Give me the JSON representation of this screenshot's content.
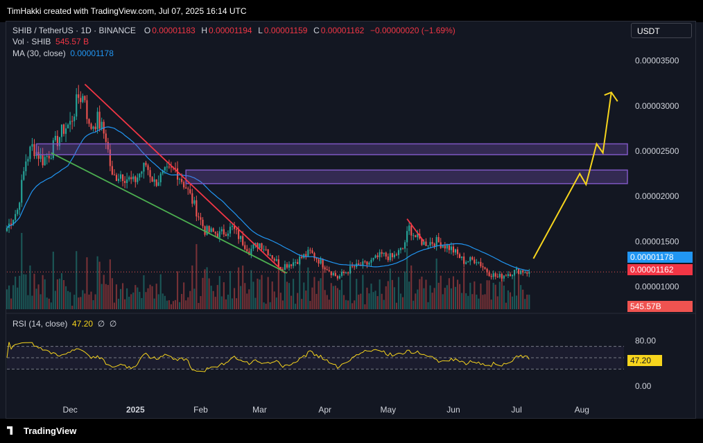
{
  "header": {
    "credit": "TimHakki created with TradingView.com, Jul 07, 2025 16:14 UTC"
  },
  "legend": {
    "symbol": "SHIB / TetherUS · 1D · BINANCE",
    "o_label": "O",
    "o": "0.00001183",
    "h_label": "H",
    "h": "0.00001194",
    "l_label": "L",
    "l": "0.00001159",
    "c_label": "C",
    "c": "0.00001162",
    "change": "−0.00000020 (−1.69%)",
    "vol_label": "Vol · SHIB",
    "vol": "545.57 B",
    "ma_label": "MA (30, close)",
    "ma": "0.00001178"
  },
  "currency_button": "USDT",
  "rsi_legend": {
    "label": "RSI (14, close)",
    "value": "47.20",
    "flag1": "∅",
    "flag2": "∅"
  },
  "price_tags": {
    "ma": "0.00001178",
    "close": "0.00001162",
    "volume": "545.57B",
    "rsi": "47.20"
  },
  "footer": {
    "brand": "TradingView"
  },
  "colors": {
    "up": "#26a69a",
    "down": "#ef5350",
    "ma": "#2196f3",
    "rsi": "#f7d51d",
    "box": "#7e57c2",
    "red_trendline": "#f23645",
    "green_trendline": "#4caf50",
    "arrow": "#f7d51d"
  },
  "chart_data": [
    {
      "type": "candlestick",
      "title": "SHIB / TetherUS · 1D · BINANCE",
      "y_axis_ticks": [
        "0.00003500",
        "0.00003000",
        "0.00002500",
        "0.00002000",
        "0.00001500",
        "0.00001000"
      ],
      "y_axis_tick_values": [
        3.5e-05,
        3e-05,
        2.5e-05,
        2e-05,
        1.5e-05,
        1e-05
      ],
      "ylim": [
        7.5e-06,
        3.75e-05
      ],
      "x_axis_ticks": [
        "Dec",
        "2025",
        "Feb",
        "Mar",
        "Apr",
        "May",
        "Jun",
        "Jul",
        "Aug"
      ],
      "x_axis_tick_dates": [
        "2024-12-01",
        "2025-01-01",
        "2025-02-01",
        "2025-03-01",
        "2025-04-01",
        "2025-05-01",
        "2025-06-01",
        "2025-07-01",
        "2025-08-01"
      ],
      "xlim": [
        "2024-11-01",
        "2025-08-21"
      ],
      "last_date": "2025-07-07",
      "anchors": [
        [
          "2024-11-01",
          1.65e-05
        ],
        [
          "2024-11-06",
          1.85e-05
        ],
        [
          "2024-11-10",
          2.4e-05
        ],
        [
          "2024-11-13",
          2.55e-05
        ],
        [
          "2024-11-18",
          2.4e-05
        ],
        [
          "2024-11-22",
          2.5e-05
        ],
        [
          "2024-11-28",
          2.75e-05
        ],
        [
          "2024-12-01",
          2.8e-05
        ],
        [
          "2024-12-05",
          3.1e-05
        ],
        [
          "2024-12-08",
          3.1e-05
        ],
        [
          "2024-12-10",
          2.75e-05
        ],
        [
          "2024-12-14",
          2.85e-05
        ],
        [
          "2024-12-18",
          2.65e-05
        ],
        [
          "2024-12-21",
          2.2e-05
        ],
        [
          "2024-12-25",
          2.25e-05
        ],
        [
          "2024-12-31",
          2.15e-05
        ],
        [
          "2025-01-06",
          2.35e-05
        ],
        [
          "2025-01-10",
          2.15e-05
        ],
        [
          "2025-01-15",
          2.25e-05
        ],
        [
          "2025-01-20",
          2.3e-05
        ],
        [
          "2025-01-25",
          2.1e-05
        ],
        [
          "2025-01-28",
          1.95e-05
        ],
        [
          "2025-02-03",
          1.62e-05
        ],
        [
          "2025-02-10",
          1.58e-05
        ],
        [
          "2025-02-16",
          1.65e-05
        ],
        [
          "2025-02-24",
          1.4e-05
        ],
        [
          "2025-03-01",
          1.48e-05
        ],
        [
          "2025-03-05",
          1.39e-05
        ],
        [
          "2025-03-11",
          1.22e-05
        ],
        [
          "2025-03-18",
          1.28e-05
        ],
        [
          "2025-03-25",
          1.38e-05
        ],
        [
          "2025-03-31",
          1.25e-05
        ],
        [
          "2025-04-07",
          1.1e-05
        ],
        [
          "2025-04-14",
          1.21e-05
        ],
        [
          "2025-04-21",
          1.25e-05
        ],
        [
          "2025-04-28",
          1.35e-05
        ],
        [
          "2025-05-03",
          1.32e-05
        ],
        [
          "2025-05-08",
          1.42e-05
        ],
        [
          "2025-05-11",
          1.65e-05
        ],
        [
          "2025-05-14",
          1.55e-05
        ],
        [
          "2025-05-18",
          1.48e-05
        ],
        [
          "2025-05-24",
          1.5e-05
        ],
        [
          "2025-05-31",
          1.42e-05
        ],
        [
          "2025-06-06",
          1.28e-05
        ],
        [
          "2025-06-12",
          1.3e-05
        ],
        [
          "2025-06-17",
          1.17e-05
        ],
        [
          "2025-06-22",
          1.1e-05
        ],
        [
          "2025-06-26",
          1.14e-05
        ],
        [
          "2025-07-02",
          1.18e-05
        ],
        [
          "2025-07-07",
          1.162e-05
        ]
      ],
      "moving_average": {
        "name": "MA (30, close)",
        "last": 1.178e-05
      },
      "close": 1.162e-05,
      "drawings": {
        "resistance_zones": [
          {
            "from": 2.46e-05,
            "to": 2.58e-05,
            "start": "2024-11-15"
          },
          {
            "from": 2.14e-05,
            "to": 2.29e-05,
            "start": "2025-01-25"
          }
        ],
        "red_trendline": [
          [
            "2024-12-08",
            3.24e-05
          ],
          [
            "2025-03-13",
            1.15e-05
          ]
        ],
        "green_trendline": [
          [
            "2024-11-22",
            2.48e-05
          ],
          [
            "2025-03-14",
            1.15e-05
          ]
        ],
        "red_minor_trendline": [
          [
            "2025-05-10",
            1.75e-05
          ],
          [
            "2025-05-18",
            1.5e-05
          ]
        ],
        "projection_arrow": [
          [
            "2025-07-09",
            1.31e-05
          ],
          [
            "2025-07-31",
            2.25e-05
          ],
          [
            "2025-08-03",
            2.13e-05
          ],
          [
            "2025-08-08",
            2.58e-05
          ],
          [
            "2025-08-11",
            2.48e-05
          ],
          [
            "2025-08-15",
            3.15e-05
          ]
        ]
      }
    },
    {
      "type": "bar",
      "title": "Vol · SHIB",
      "last": "545.57 B"
    },
    {
      "type": "line",
      "title": "RSI (14, close)",
      "y_axis_ticks": [
        "80.00",
        "0.00"
      ],
      "y_axis_tick_values": [
        80,
        0
      ],
      "bands": [
        70,
        50,
        30
      ],
      "last": 47.2
    }
  ]
}
